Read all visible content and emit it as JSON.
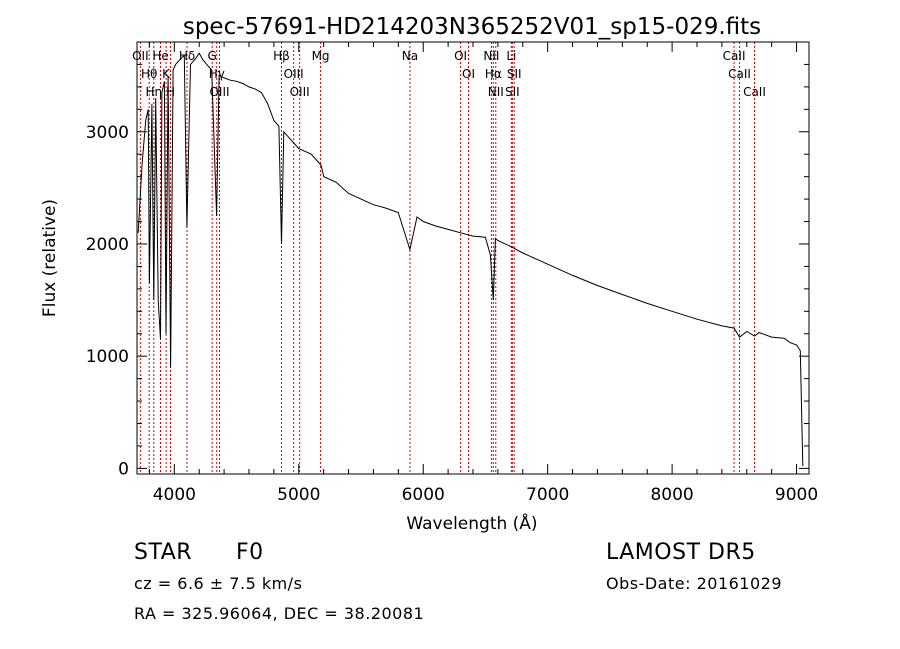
{
  "chart_data": {
    "type": "line",
    "title": "spec-57691-HD214203N365252V01_sp15-029.fits",
    "xlabel": "Wavelength (Å)",
    "ylabel": "Flux (relative)",
    "xlim": [
      3700,
      9100
    ],
    "ylim": [
      -50,
      3800
    ],
    "x_ticks": [
      4000,
      5000,
      6000,
      7000,
      8000,
      9000
    ],
    "x_tick_labels": [
      "4000",
      "5000",
      "6000",
      "7000",
      "8000",
      "9000"
    ],
    "y_ticks": [
      0,
      1000,
      2000,
      3000
    ],
    "y_tick_labels": [
      "0",
      "1000",
      "2000",
      "3000"
    ],
    "grid": false,
    "series": [
      {
        "x": [
          3710,
          3740,
          3770,
          3790,
          3800,
          3820,
          3835,
          3850,
          3870,
          3889,
          3900,
          3920,
          3933,
          3950,
          3970,
          3990,
          4010,
          4050,
          4080,
          4101,
          4130,
          4170,
          4200,
          4230,
          4260,
          4300,
          4340,
          4360,
          4400,
          4450,
          4500,
          4550,
          4600,
          4650,
          4700,
          4750,
          4800,
          4840,
          4861,
          4880,
          4920,
          4960,
          5000,
          5100,
          5180,
          5200,
          5300,
          5400,
          5500,
          5600,
          5700,
          5800,
          5893,
          5950,
          6000,
          6100,
          6200,
          6300,
          6400,
          6500,
          6540,
          6563,
          6580,
          6600,
          6700,
          6800,
          6900,
          7000,
          7200,
          7400,
          7600,
          7800,
          8000,
          8200,
          8400,
          8498,
          8542,
          8600,
          8662,
          8700,
          8800,
          8900,
          8950,
          9000,
          9030,
          9050
        ],
        "y": [
          2100,
          2700,
          3100,
          3200,
          1650,
          3250,
          1500,
          3300,
          1500,
          1150,
          3350,
          3450,
          1200,
          3500,
          900,
          3550,
          3600,
          3650,
          3680,
          2150,
          3600,
          3650,
          3700,
          3640,
          3600,
          3550,
          2250,
          3500,
          3480,
          3460,
          3450,
          3430,
          3400,
          3380,
          3350,
          3250,
          3100,
          3050,
          2000,
          3000,
          2950,
          2900,
          2850,
          2800,
          2700,
          2600,
          2550,
          2450,
          2400,
          2350,
          2320,
          2280,
          1950,
          2240,
          2200,
          2160,
          2130,
          2100,
          2070,
          2060,
          1900,
          1500,
          2050,
          2030,
          1980,
          1920,
          1870,
          1820,
          1720,
          1630,
          1550,
          1470,
          1400,
          1330,
          1270,
          1250,
          1170,
          1220,
          1180,
          1210,
          1170,
          1160,
          1120,
          1100,
          1050,
          20
        ]
      }
    ],
    "lines": [
      {
        "name": "Hθ",
        "x": 3798
      },
      {
        "name": "OII",
        "x": 3727
      },
      {
        "name": "Hη",
        "x": 3835
      },
      {
        "name": "K",
        "x": 3934
      },
      {
        "name": "He",
        "x": 3889
      },
      {
        "name": "H",
        "x": 3969
      },
      {
        "name": "Hδ",
        "x": 4102
      },
      {
        "name": "Hγ",
        "x": 4341
      },
      {
        "name": "G",
        "x": 4304
      },
      {
        "name": "OIII",
        "x": 4363
      },
      {
        "name": "OIII",
        "x": 4959
      },
      {
        "name": "OIII",
        "x": 5007
      },
      {
        "name": "Hβ",
        "x": 4861
      },
      {
        "name": "Mg",
        "x": 5175
      },
      {
        "name": "Na",
        "x": 5893
      },
      {
        "name": "OI",
        "x": 6300
      },
      {
        "name": "OI",
        "x": 6364
      },
      {
        "name": "Hα",
        "x": 6563
      },
      {
        "name": "NII",
        "x": 6548
      },
      {
        "name": "NII",
        "x": 6583
      },
      {
        "name": "SII",
        "x": 6716
      },
      {
        "name": "SII",
        "x": 6731
      },
      {
        "name": "Li",
        "x": 6708
      },
      {
        "name": "CaII",
        "x": 8498
      },
      {
        "name": "CaII",
        "x": 8542
      },
      {
        "name": "CaII",
        "x": 8662
      }
    ]
  },
  "info": {
    "object_class": "STAR",
    "subclass": "F0",
    "survey": "LAMOST DR5",
    "redshift": "cz = 6.6 ± 7.5 km/s",
    "obs_date": "Obs-Date: 20161029",
    "coords": "RA = 325.96064, DEC =  38.20081"
  }
}
